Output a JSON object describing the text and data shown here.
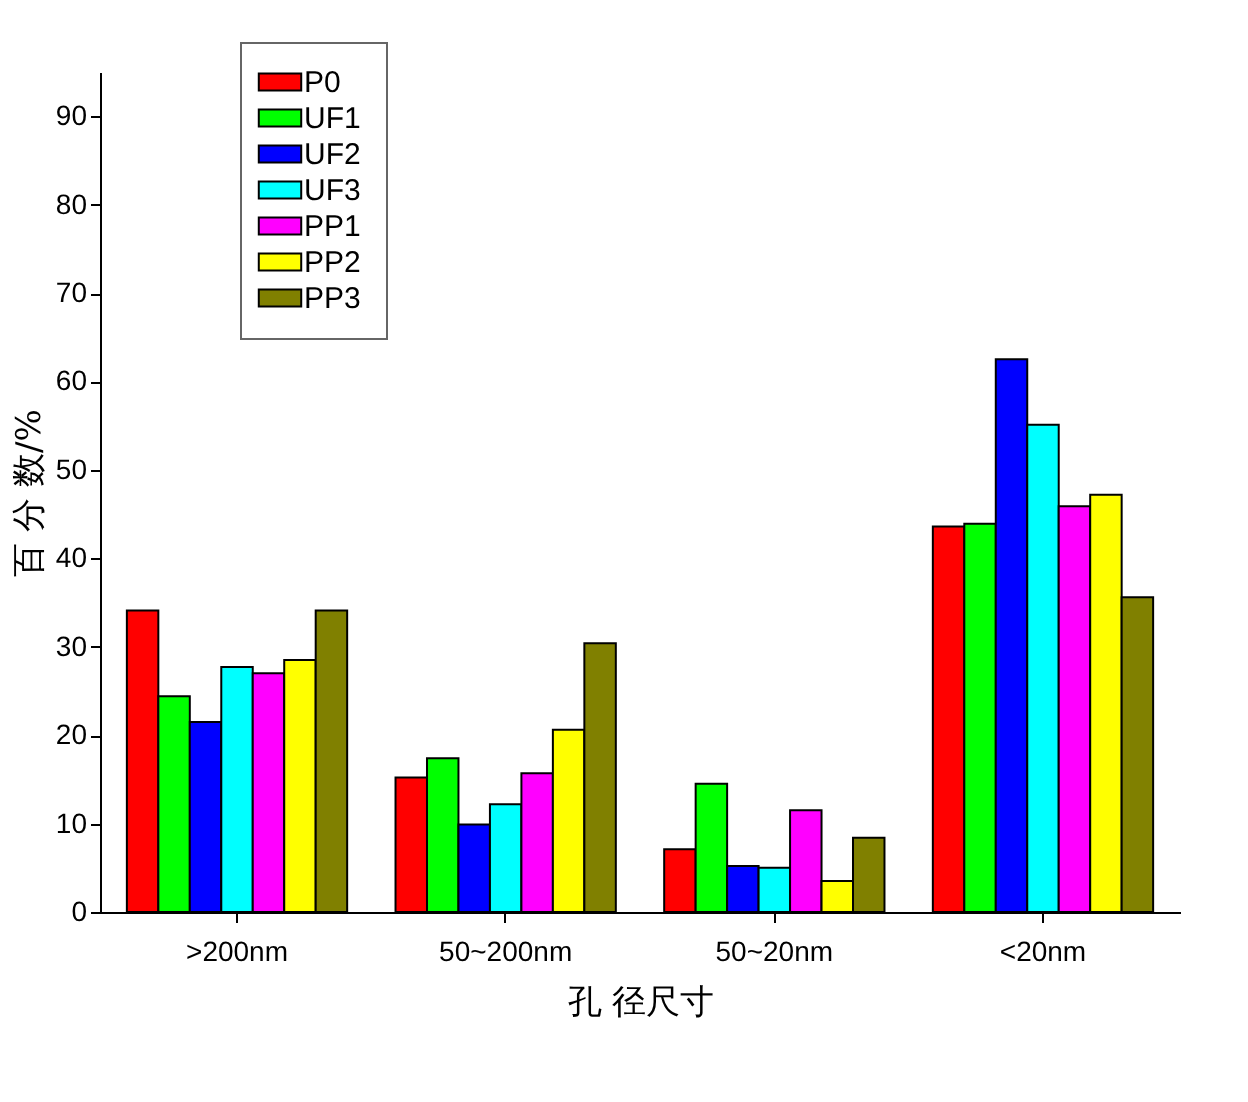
{
  "chart_data": {
    "type": "bar",
    "xlabel": "孔 径尺寸",
    "ylabel": "百 分 数/%",
    "categories": [
      ">200nm",
      "50~200nm",
      "50~20nm",
      "<20nm"
    ],
    "series": [
      {
        "name": "P0",
        "color": "#ff0000",
        "values": [
          34.1,
          15.2,
          7.1,
          43.6
        ]
      },
      {
        "name": "UF1",
        "color": "#00ff00",
        "values": [
          24.4,
          17.4,
          14.5,
          43.9
        ]
      },
      {
        "name": "UF2",
        "color": "#0000ff",
        "values": [
          21.5,
          9.9,
          5.2,
          62.5
        ]
      },
      {
        "name": "UF3",
        "color": "#00ffff",
        "values": [
          27.7,
          12.2,
          5.0,
          55.1
        ]
      },
      {
        "name": "PP1",
        "color": "#ff00ff",
        "values": [
          27.0,
          15.7,
          11.5,
          45.9
        ]
      },
      {
        "name": "PP2",
        "color": "#ffff00",
        "values": [
          28.5,
          20.6,
          3.5,
          47.2
        ]
      },
      {
        "name": "PP3",
        "color": "#808000",
        "values": [
          34.1,
          30.4,
          8.4,
          35.6
        ]
      }
    ],
    "ylim": [
      0,
      95
    ],
    "yticks": [
      0,
      10,
      20,
      30,
      40,
      50,
      60,
      70,
      80,
      90
    ],
    "grid": false,
    "legend": "top left"
  }
}
